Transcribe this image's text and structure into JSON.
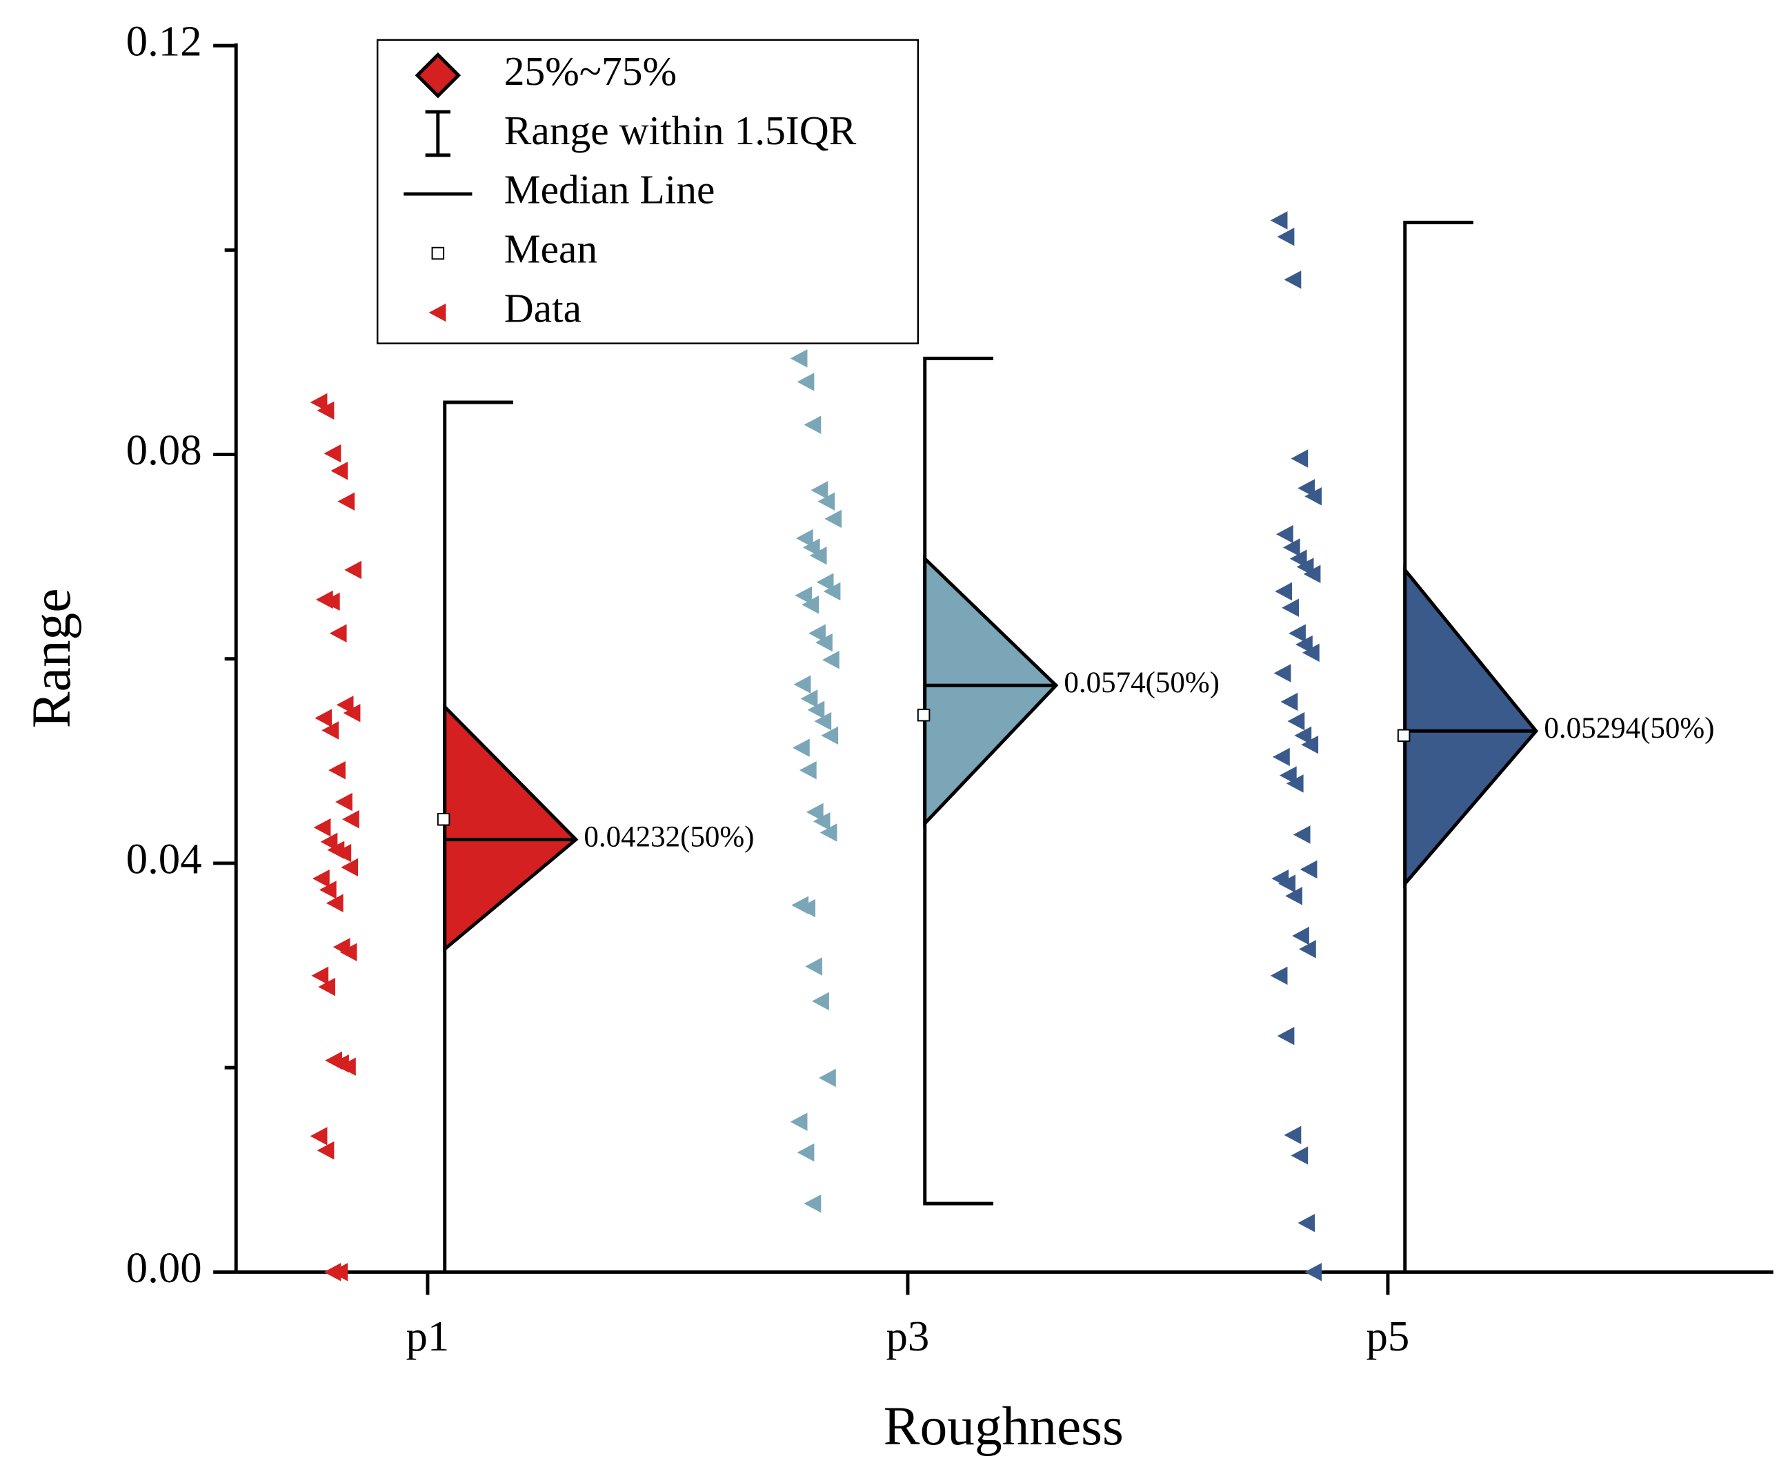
{
  "chart_data": {
    "type": "box",
    "xlabel": "Roughness",
    "ylabel": "Range",
    "categories": [
      "p1",
      "p3",
      "p5"
    ],
    "ylim": [
      0,
      0.12
    ],
    "yticks": [
      {
        "value": 0,
        "label": "0.00"
      },
      {
        "value": 0.04,
        "label": "0.04"
      },
      {
        "value": 0.08,
        "label": "0.08"
      },
      {
        "value": 0.12,
        "label": "0.12"
      }
    ],
    "yminorticks": [
      0.02,
      0.06,
      0.1
    ],
    "legend": [
      "25%~75%",
      "Range within 1.5IQR",
      "Median Line",
      "Mean",
      "Data"
    ],
    "series": [
      {
        "name": "p1",
        "color": "#d42020",
        "q1": 0.0316,
        "q3": 0.0553,
        "median": 0.04232,
        "median_label": "0.04232(50%)",
        "mean": 0.0443,
        "whisker_low": 0,
        "whisker_high": 0.0851,
        "values": [
          0.0851,
          0.0843,
          0.0801,
          0.0784,
          0.0754,
          0.0687,
          0.0658,
          0.0656,
          0.0625,
          0.0555,
          0.0547,
          0.0542,
          0.053,
          0.0491,
          0.046,
          0.0443,
          0.0435,
          0.0421,
          0.0413,
          0.041,
          0.0396,
          0.0385,
          0.0374,
          0.0361,
          0.0318,
          0.0313,
          0.029,
          0.0279,
          0.0207,
          0.0204,
          0.0201,
          0.0133,
          0.0119,
          0,
          0
        ]
      },
      {
        "name": "p3",
        "color": "#7aa6b8",
        "q1": 0.0439,
        "q3": 0.0698,
        "median": 0.0574,
        "median_label": "0.0574(50%)",
        "mean": 0.0545,
        "whisker_low": 0.0067,
        "whisker_high": 0.0894,
        "values": [
          0.0894,
          0.0871,
          0.0829,
          0.0765,
          0.0754,
          0.0737,
          0.0718,
          0.0709,
          0.0701,
          0.0675,
          0.0666,
          0.0662,
          0.0653,
          0.0625,
          0.0616,
          0.0599,
          0.0575,
          0.0561,
          0.055,
          0.0539,
          0.0525,
          0.0513,
          0.0491,
          0.045,
          0.0441,
          0.043,
          0.0359,
          0.0356,
          0.0299,
          0.0265,
          0.019,
          0.0147,
          0.0117,
          0.0067
        ]
      },
      {
        "name": "p5",
        "color": "#3a5a8c",
        "q1": 0.038,
        "q3": 0.0687,
        "median": 0.05294,
        "median_label": "0.05294(50%)",
        "mean": 0.0525,
        "whisker_low": 0,
        "whisker_high": 0.1027,
        "values": [
          0.1029,
          0.1013,
          0.0971,
          0.0796,
          0.0767,
          0.0759,
          0.0722,
          0.0709,
          0.0698,
          0.069,
          0.0683,
          0.0666,
          0.065,
          0.0625,
          0.0614,
          0.0606,
          0.0586,
          0.0558,
          0.0539,
          0.0525,
          0.0516,
          0.0504,
          0.0486,
          0.0478,
          0.0428,
          0.0394,
          0.0385,
          0.038,
          0.0368,
          0.0329,
          0.0316,
          0.029,
          0.0231,
          0.0134,
          0.0114,
          0.0048,
          0
        ]
      }
    ]
  }
}
